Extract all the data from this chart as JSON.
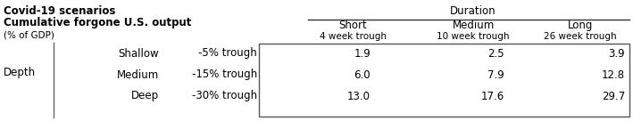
{
  "title_line1": "Covid-19 scenarios",
  "title_line2": "Cumulative forgone U.S. output",
  "title_line3": "(% of GDP)",
  "duration_label": "Duration",
  "col_headers": [
    "Short",
    "Medium",
    "Long"
  ],
  "col_subheaders": [
    "4 week trough",
    "10 week trough",
    "26 week trough"
  ],
  "row_label_group": "Depth",
  "row_labels": [
    "Shallow",
    "Medium",
    "Deep"
  ],
  "row_sublabels": [
    "-5% trough",
    "-15% trough",
    "-30% trough"
  ],
  "values": [
    [
      1.9,
      2.5,
      3.9
    ],
    [
      6.0,
      7.9,
      12.8
    ],
    [
      13.0,
      17.6,
      29.7
    ]
  ],
  "text_color": "#000000",
  "bg_color": "#ffffff",
  "figsize": [
    7.09,
    1.45
  ],
  "dpi": 100
}
